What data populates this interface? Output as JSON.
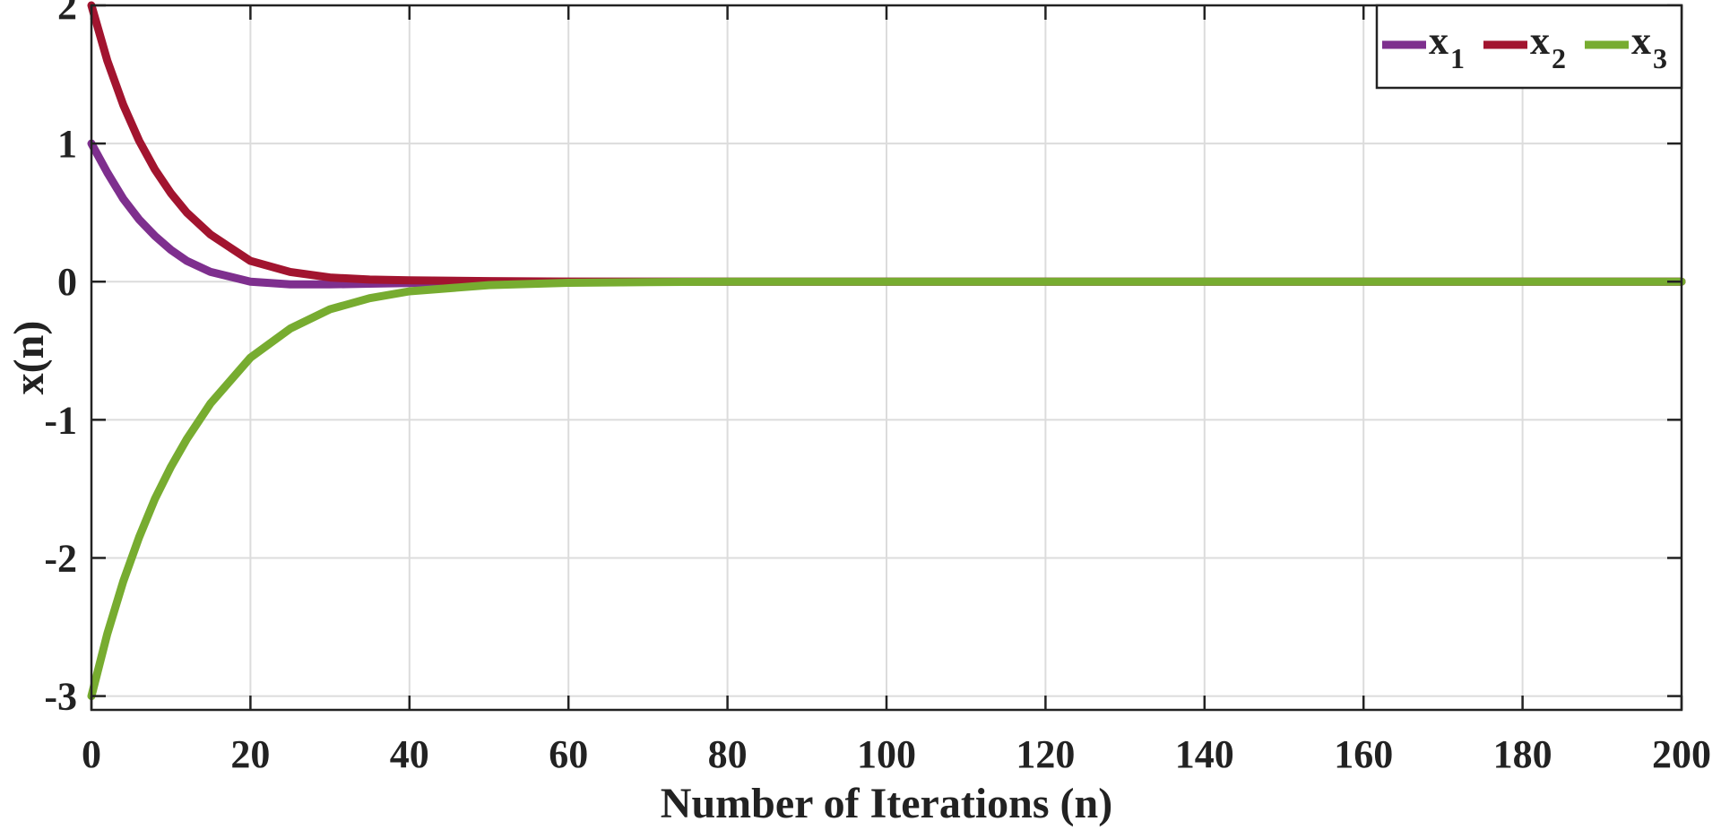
{
  "chart_data": {
    "type": "line",
    "xlabel": "Number of Iterations (n)",
    "ylabel": "x(n)",
    "xlim": [
      0,
      200
    ],
    "ylim": [
      -3.1,
      2
    ],
    "xticks": [
      0,
      20,
      40,
      60,
      80,
      100,
      120,
      140,
      160,
      180,
      200
    ],
    "yticks": [
      -3,
      -2,
      -1,
      0,
      1,
      2
    ],
    "xtick_labels": [
      "0",
      "20",
      "40",
      "60",
      "80",
      "100",
      "120",
      "140",
      "160",
      "180",
      "200"
    ],
    "ytick_labels": [
      "-3",
      "-2",
      "-1",
      "0",
      "1",
      "2"
    ],
    "grid": true,
    "legend": {
      "position": "top-right",
      "orientation": "horizontal"
    },
    "x": [
      0,
      2,
      4,
      6,
      8,
      10,
      12,
      15,
      20,
      25,
      30,
      35,
      40,
      50,
      60,
      70,
      80,
      100,
      120,
      140,
      160,
      180,
      200
    ],
    "series": [
      {
        "name": "x",
        "subscript": "1",
        "color": "#7E2F8E",
        "values": [
          1.0,
          0.79,
          0.6,
          0.45,
          0.33,
          0.23,
          0.15,
          0.07,
          0.0,
          -0.02,
          -0.02,
          -0.015,
          -0.01,
          -0.004,
          -0.001,
          0,
          0,
          0,
          0,
          0,
          0,
          0,
          0
        ]
      },
      {
        "name": "x",
        "subscript": "2",
        "color": "#A2142F",
        "values": [
          2.0,
          1.6,
          1.28,
          1.02,
          0.81,
          0.64,
          0.5,
          0.34,
          0.15,
          0.07,
          0.03,
          0.015,
          0.01,
          0.004,
          0.001,
          0,
          0,
          0,
          0,
          0,
          0,
          0,
          0
        ]
      },
      {
        "name": "x",
        "subscript": "3",
        "color": "#77AC30",
        "values": [
          -3.0,
          -2.55,
          -2.17,
          -1.85,
          -1.57,
          -1.34,
          -1.14,
          -0.88,
          -0.55,
          -0.34,
          -0.2,
          -0.12,
          -0.07,
          -0.025,
          -0.008,
          -0.003,
          0,
          0,
          0,
          0,
          0,
          0,
          0
        ]
      }
    ]
  }
}
